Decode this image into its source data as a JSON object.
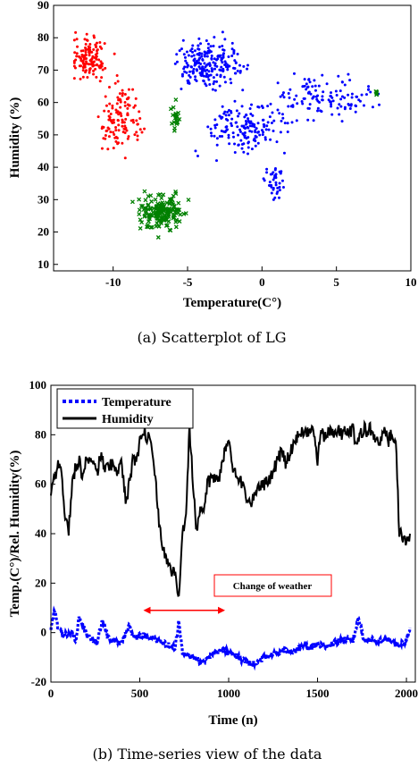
{
  "chart_data": [
    {
      "type": "scatter",
      "xlabel": "Temperature(C°)",
      "ylabel": "Humidity (%)",
      "xlim": [
        -14,
        10
      ],
      "ylim": [
        8,
        90
      ],
      "xticks": [
        -10,
        -5,
        0,
        5,
        10
      ],
      "yticks": [
        10,
        20,
        30,
        40,
        50,
        60,
        70,
        80,
        90
      ],
      "caption": "(a) Scatterplot of LG",
      "colors": {
        "red": "#ff0000",
        "blue": "#0000ff",
        "green": "#008000"
      },
      "series": [
        {
          "color": "red",
          "marker": "dot",
          "x_range": [
            -12.6,
            -5.8
          ],
          "y_range": [
            36,
            83
          ]
        },
        {
          "color": "blue",
          "marker": "dot",
          "x_range": [
            -6.0,
            9.8
          ],
          "y_range": [
            30,
            86
          ]
        },
        {
          "color": "green",
          "marker": "x",
          "x_range": [
            -10.5,
            7.7
          ],
          "y_range": [
            12,
            64
          ]
        }
      ]
    },
    {
      "type": "line",
      "xlabel": "Time (n)",
      "ylabel": "Temp.(C°)/Rel. Humidity(%)",
      "xlim": [
        0,
        2050
      ],
      "ylim": [
        -20,
        100
      ],
      "xticks": [
        0,
        500,
        1000,
        1500,
        2000
      ],
      "yticks": [
        -20,
        0,
        20,
        40,
        60,
        80,
        100
      ],
      "caption": "(b) Time-series view of the data",
      "legend": {
        "position": "top-left",
        "entries": [
          "Temperature",
          "Humidity"
        ]
      },
      "annotation": {
        "text": "Change of weather",
        "arrow_x": [
          520,
          980
        ],
        "arrow_y": 9
      },
      "series": [
        {
          "name": "Temperature",
          "color": "#0000ff",
          "style": "dotted",
          "x": [
            0,
            20,
            40,
            80,
            120,
            140,
            160,
            200,
            260,
            290,
            320,
            340,
            400,
            440,
            460,
            520,
            560,
            600,
            650,
            700,
            720,
            740,
            800,
            850,
            900,
            950,
            1000,
            1050,
            1100,
            1150,
            1200,
            1250,
            1300,
            1350,
            1400,
            1450,
            1500,
            1550,
            1600,
            1650,
            1700,
            1730,
            1760,
            1800,
            1850,
            1900,
            1950,
            1980,
            2000,
            2020
          ],
          "y": [
            2,
            9,
            2,
            -1,
            0,
            -3,
            7,
            -1,
            -4,
            5,
            -2,
            -3,
            -4,
            3,
            -2,
            -1,
            -2,
            -3,
            -5,
            -6,
            5,
            -8,
            -10,
            -12,
            -9,
            -7,
            -8,
            -10,
            -12,
            -13,
            -10,
            -9,
            -7,
            -8,
            -6,
            -6,
            -5,
            -5,
            -4,
            -3,
            -3,
            6,
            -3,
            -3,
            -3,
            -3,
            -5,
            -4,
            -3,
            2
          ]
        },
        {
          "name": "Humidity",
          "color": "#000000",
          "style": "solid",
          "x": [
            0,
            20,
            40,
            60,
            80,
            100,
            120,
            140,
            160,
            180,
            200,
            220,
            240,
            260,
            280,
            300,
            320,
            340,
            360,
            380,
            400,
            420,
            440,
            460,
            480,
            500,
            520,
            540,
            560,
            580,
            600,
            620,
            640,
            660,
            680,
            700,
            720,
            740,
            760,
            780,
            800,
            820,
            840,
            860,
            880,
            900,
            920,
            940,
            960,
            980,
            1000,
            1020,
            1040,
            1060,
            1080,
            1100,
            1120,
            1140,
            1160,
            1180,
            1200,
            1220,
            1240,
            1260,
            1280,
            1300,
            1320,
            1340,
            1360,
            1380,
            1400,
            1420,
            1440,
            1460,
            1480,
            1500,
            1520,
            1540,
            1560,
            1580,
            1600,
            1620,
            1640,
            1660,
            1680,
            1700,
            1720,
            1740,
            1760,
            1780,
            1800,
            1820,
            1840,
            1860,
            1880,
            1900,
            1920,
            1940,
            1960,
            1980,
            2000,
            2020
          ],
          "y": [
            55,
            63,
            67,
            66,
            46,
            42,
            60,
            68,
            70,
            62,
            73,
            68,
            68,
            64,
            72,
            67,
            66,
            68,
            68,
            65,
            68,
            52,
            60,
            70,
            68,
            78,
            82,
            79,
            80,
            70,
            50,
            40,
            30,
            28,
            25,
            22,
            16,
            40,
            50,
            82,
            60,
            40,
            48,
            50,
            60,
            62,
            64,
            60,
            68,
            75,
            78,
            66,
            65,
            62,
            60,
            55,
            52,
            55,
            58,
            60,
            60,
            62,
            63,
            67,
            70,
            75,
            68,
            72,
            76,
            79,
            80,
            82,
            82,
            82,
            80,
            70,
            82,
            78,
            82,
            80,
            80,
            82,
            80,
            82,
            82,
            82,
            76,
            80,
            82,
            82,
            82,
            80,
            76,
            78,
            82,
            78,
            80,
            78,
            40,
            38,
            36,
            40
          ]
        }
      ]
    }
  ]
}
